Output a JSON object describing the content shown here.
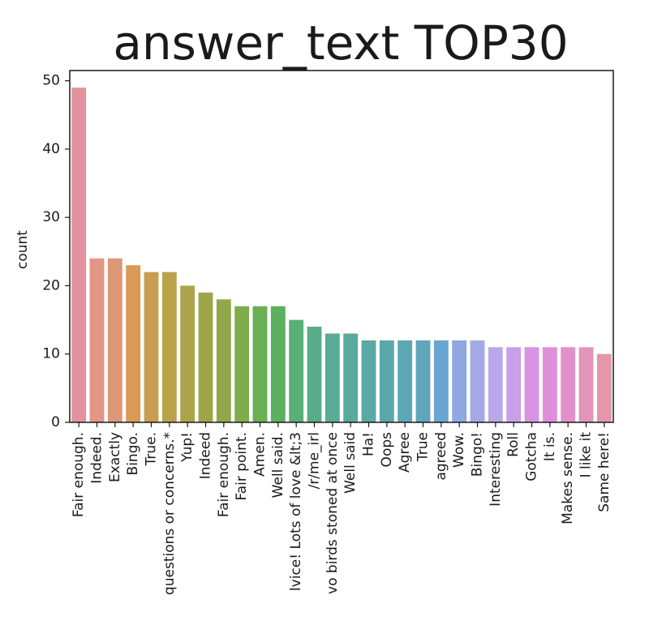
{
  "chart_data": {
    "type": "bar",
    "title": "answer_text TOP30",
    "xlabel": "",
    "ylabel": "count",
    "ylim": [
      0,
      51.5
    ],
    "yticks": [
      0,
      10,
      20,
      30,
      40,
      50
    ],
    "grid": false,
    "categories": [
      "Fair enough.",
      "Indeed.",
      "Exactly",
      "Bingo.",
      "True.",
      "questions or concerns.*",
      "Yup!",
      "Indeed",
      "Fair enough.",
      "Fair point.",
      "Amen.",
      "Well said.",
      "lvice! Lots of love &lt;3",
      "/r/me_irl",
      "vo birds stoned at once",
      "Well said",
      "Ha!",
      "Oops",
      "Agree",
      "True",
      "agreed",
      "Wow.",
      "Bingo!",
      "Interesting",
      "Roll",
      "Gotcha",
      "It is.",
      "Makes sense.",
      "I like it",
      "Same here!"
    ],
    "values": [
      49,
      24,
      24,
      23,
      22,
      22,
      20,
      19,
      18,
      17,
      17,
      17,
      15,
      14,
      13,
      13,
      12,
      12,
      12,
      12,
      12,
      12,
      12,
      11,
      11,
      11,
      11,
      11,
      11,
      10
    ],
    "colors": [
      "#e3929f",
      "#e29686",
      "#df9779",
      "#d99a55",
      "#c79e50",
      "#bba24a",
      "#aca44a",
      "#9fa649",
      "#90a84a",
      "#7fac4b",
      "#6aaf52",
      "#5db060",
      "#58af77",
      "#57ad87",
      "#58ac93",
      "#59aa9c",
      "#5aa9a4",
      "#5ba8ac",
      "#5da7b4",
      "#5fa6bd",
      "#6aa6d3",
      "#8ea8e1",
      "#a4a9e6",
      "#b8a7ea",
      "#c99fe8",
      "#d893e4",
      "#df8fd9",
      "#e190c9",
      "#e394b8",
      "#e497a8"
    ]
  }
}
